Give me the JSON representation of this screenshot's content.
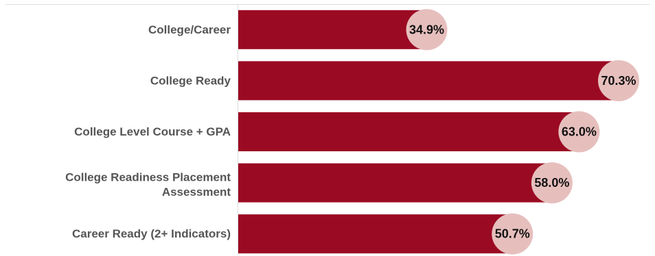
{
  "chart_data": {
    "type": "bar",
    "orientation": "horizontal",
    "categories": [
      "College/Career",
      "College Ready",
      "College Level Course + GPA",
      "College Readiness Placement Assessment",
      "Career Ready (2+ Indicators)"
    ],
    "values": [
      34.9,
      70.3,
      63.0,
      58.0,
      50.7
    ],
    "value_labels": [
      "34.9%",
      "70.3%",
      "63.0%",
      "58.0%",
      "50.7%"
    ],
    "title": "",
    "xlabel": "",
    "ylabel": "",
    "xlim": [
      0,
      76
    ],
    "grid": false,
    "legend": "none"
  },
  "colors": {
    "bar": "#9b0a23",
    "marker": "#e6bfbd",
    "axis": "#dddddd",
    "category_text": "#555555",
    "value_text": "#111111"
  }
}
